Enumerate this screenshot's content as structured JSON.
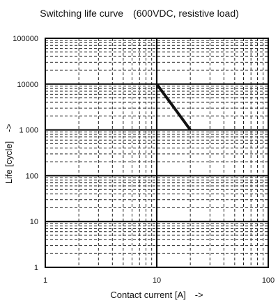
{
  "chart_data": {
    "type": "line",
    "title": "Switching life curve　(600VDC, resistive load)",
    "xlabel": "Contact current [A]　->",
    "ylabel": "Life [cycle]　->",
    "xscale": "log",
    "yscale": "log",
    "xlim": [
      1,
      100
    ],
    "ylim": [
      1,
      100000
    ],
    "x_ticks": [
      "1",
      "10",
      "100"
    ],
    "y_ticks": [
      "1",
      "10",
      "100",
      "1 000",
      "10000",
      "100000"
    ],
    "grid": true,
    "legend": "none",
    "series": [
      {
        "x": [
          10,
          20
        ],
        "y": [
          10000,
          1000
        ]
      }
    ],
    "colors": {
      "curve": "#111111",
      "grid": "#222222",
      "axis": "#000000",
      "background": "#ffffff"
    }
  }
}
